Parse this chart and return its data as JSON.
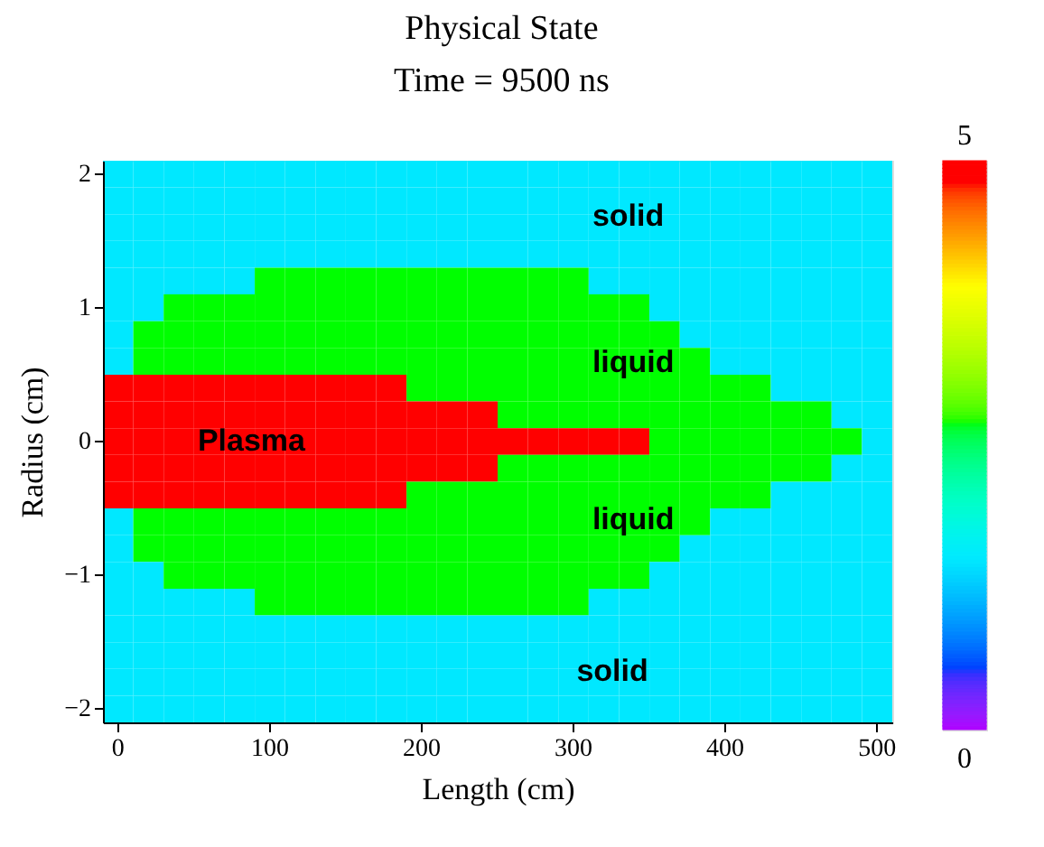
{
  "chart_data": {
    "type": "heatmap",
    "title": "Physical State",
    "subtitle": "Time = 9500 ns",
    "xlabel": "Length (cm)",
    "ylabel": "Radius (cm)",
    "categories": [
      "0",
      null,
      null,
      null,
      null,
      "100",
      null,
      null,
      null,
      null,
      "200",
      null,
      null,
      null,
      null,
      "300",
      null,
      null,
      null,
      null,
      "400",
      null,
      null,
      null,
      null,
      "500"
    ],
    "y_categories": [
      "2",
      null,
      null,
      null,
      null,
      "1",
      null,
      null,
      null,
      null,
      "0",
      null,
      null,
      null,
      null,
      "−1",
      null,
      null,
      null,
      null,
      "−2"
    ],
    "clim": [
      0,
      5.0
    ],
    "cticks": [
      0,
      5
    ],
    "grid": false,
    "cells": [
      [
        1.5,
        1.5,
        1.5,
        1.5,
        1.5,
        1.5,
        1.5,
        1.5,
        1.5,
        1.5,
        1.5,
        1.5,
        1.5,
        1.5,
        1.5,
        1.5,
        1.5,
        1.5,
        1.5,
        1.5,
        1.5,
        1.5,
        1.5,
        1.5,
        1.5,
        1.5
      ],
      [
        1.5,
        1.5,
        1.5,
        1.5,
        1.5,
        1.5,
        1.5,
        1.5,
        1.5,
        1.5,
        1.5,
        1.5,
        1.5,
        1.5,
        1.5,
        1.5,
        1.5,
        1.5,
        1.5,
        1.5,
        1.5,
        1.5,
        1.5,
        1.5,
        1.5,
        1.5
      ],
      [
        1.5,
        1.5,
        1.5,
        1.5,
        1.5,
        1.5,
        1.5,
        1.5,
        1.5,
        1.5,
        1.5,
        1.5,
        1.5,
        1.5,
        1.5,
        1.5,
        1.5,
        1.5,
        1.5,
        1.5,
        1.5,
        1.5,
        1.5,
        1.5,
        1.5,
        1.5
      ],
      [
        1.5,
        1.5,
        1.5,
        1.5,
        1.5,
        1.5,
        1.5,
        1.5,
        1.5,
        1.5,
        1.5,
        1.5,
        1.5,
        1.5,
        1.5,
        1.5,
        1.5,
        1.5,
        1.5,
        1.5,
        1.5,
        1.5,
        1.5,
        1.5,
        1.5,
        1.5
      ],
      [
        1.5,
        1.5,
        1.5,
        1.5,
        1.5,
        2.7,
        2.7,
        2.7,
        2.7,
        2.7,
        2.7,
        2.7,
        2.7,
        2.7,
        2.7,
        2.7,
        1.5,
        1.5,
        1.5,
        1.5,
        1.5,
        1.5,
        1.5,
        1.5,
        1.5,
        1.5
      ],
      [
        1.5,
        1.5,
        2.7,
        2.7,
        2.7,
        2.7,
        2.7,
        2.7,
        2.7,
        2.7,
        2.7,
        2.7,
        2.7,
        2.7,
        2.7,
        2.7,
        2.7,
        2.7,
        1.5,
        1.5,
        1.5,
        1.5,
        1.5,
        1.5,
        1.5,
        1.5
      ],
      [
        1.5,
        2.7,
        2.7,
        2.7,
        2.7,
        2.7,
        2.7,
        2.7,
        2.7,
        2.7,
        2.7,
        2.7,
        2.7,
        2.7,
        2.7,
        2.7,
        2.7,
        2.7,
        2.7,
        1.5,
        1.5,
        1.5,
        1.5,
        1.5,
        1.5,
        1.5
      ],
      [
        1.5,
        2.7,
        2.7,
        2.7,
        2.7,
        2.7,
        2.7,
        2.7,
        2.7,
        2.7,
        2.7,
        2.7,
        2.7,
        2.7,
        2.7,
        2.7,
        2.7,
        2.7,
        2.7,
        2.7,
        1.5,
        1.5,
        1.5,
        1.5,
        1.5,
        1.5
      ],
      [
        4.8,
        4.8,
        4.8,
        4.8,
        4.8,
        4.8,
        4.8,
        4.8,
        4.8,
        4.8,
        2.7,
        2.7,
        2.7,
        2.7,
        2.7,
        2.7,
        2.7,
        2.7,
        2.7,
        2.7,
        2.7,
        2.7,
        1.5,
        1.5,
        1.5,
        1.5
      ],
      [
        4.8,
        4.8,
        4.8,
        4.8,
        4.8,
        4.8,
        4.8,
        4.8,
        4.8,
        4.8,
        4.8,
        4.8,
        4.8,
        2.7,
        2.7,
        2.7,
        2.7,
        2.7,
        2.7,
        2.7,
        2.7,
        2.7,
        2.7,
        2.7,
        1.5,
        1.5
      ],
      [
        4.8,
        4.8,
        4.8,
        4.8,
        4.8,
        4.8,
        4.8,
        4.8,
        4.8,
        4.8,
        4.8,
        4.8,
        4.8,
        4.8,
        4.8,
        4.8,
        4.8,
        4.8,
        2.7,
        2.7,
        2.7,
        2.7,
        2.7,
        2.7,
        2.7,
        1.5
      ],
      [
        4.8,
        4.8,
        4.8,
        4.8,
        4.8,
        4.8,
        4.8,
        4.8,
        4.8,
        4.8,
        4.8,
        4.8,
        4.8,
        2.7,
        2.7,
        2.7,
        2.7,
        2.7,
        2.7,
        2.7,
        2.7,
        2.7,
        2.7,
        2.7,
        1.5,
        1.5
      ],
      [
        4.8,
        4.8,
        4.8,
        4.8,
        4.8,
        4.8,
        4.8,
        4.8,
        4.8,
        4.8,
        2.7,
        2.7,
        2.7,
        2.7,
        2.7,
        2.7,
        2.7,
        2.7,
        2.7,
        2.7,
        2.7,
        2.7,
        1.5,
        1.5,
        1.5,
        1.5
      ],
      [
        1.5,
        2.7,
        2.7,
        2.7,
        2.7,
        2.7,
        2.7,
        2.7,
        2.7,
        2.7,
        2.7,
        2.7,
        2.7,
        2.7,
        2.7,
        2.7,
        2.7,
        2.7,
        2.7,
        2.7,
        1.5,
        1.5,
        1.5,
        1.5,
        1.5,
        1.5
      ],
      [
        1.5,
        2.7,
        2.7,
        2.7,
        2.7,
        2.7,
        2.7,
        2.7,
        2.7,
        2.7,
        2.7,
        2.7,
        2.7,
        2.7,
        2.7,
        2.7,
        2.7,
        2.7,
        2.7,
        1.5,
        1.5,
        1.5,
        1.5,
        1.5,
        1.5,
        1.5
      ],
      [
        1.5,
        1.5,
        2.7,
        2.7,
        2.7,
        2.7,
        2.7,
        2.7,
        2.7,
        2.7,
        2.7,
        2.7,
        2.7,
        2.7,
        2.7,
        2.7,
        2.7,
        2.7,
        1.5,
        1.5,
        1.5,
        1.5,
        1.5,
        1.5,
        1.5,
        1.5
      ],
      [
        1.5,
        1.5,
        1.5,
        1.5,
        1.5,
        2.7,
        2.7,
        2.7,
        2.7,
        2.7,
        2.7,
        2.7,
        2.7,
        2.7,
        2.7,
        2.7,
        1.5,
        1.5,
        1.5,
        1.5,
        1.5,
        1.5,
        1.5,
        1.5,
        1.5,
        1.5
      ],
      [
        1.5,
        1.5,
        1.5,
        1.5,
        1.5,
        1.5,
        1.5,
        1.5,
        1.5,
        1.5,
        1.5,
        1.5,
        1.5,
        1.5,
        1.5,
        1.5,
        1.5,
        1.5,
        1.5,
        1.5,
        1.5,
        1.5,
        1.5,
        1.5,
        1.5,
        1.5
      ],
      [
        1.5,
        1.5,
        1.5,
        1.5,
        1.5,
        1.5,
        1.5,
        1.5,
        1.5,
        1.5,
        1.5,
        1.5,
        1.5,
        1.5,
        1.5,
        1.5,
        1.5,
        1.5,
        1.5,
        1.5,
        1.5,
        1.5,
        1.5,
        1.5,
        1.5,
        1.5
      ],
      [
        1.5,
        1.5,
        1.5,
        1.5,
        1.5,
        1.5,
        1.5,
        1.5,
        1.5,
        1.5,
        1.5,
        1.5,
        1.5,
        1.5,
        1.5,
        1.5,
        1.5,
        1.5,
        1.5,
        1.5,
        1.5,
        1.5,
        1.5,
        1.5,
        1.5,
        1.5
      ],
      [
        1.5,
        1.5,
        1.5,
        1.5,
        1.5,
        1.5,
        1.5,
        1.5,
        1.5,
        1.5,
        1.5,
        1.5,
        1.5,
        1.5,
        1.5,
        1.5,
        1.5,
        1.5,
        1.5,
        1.5,
        1.5,
        1.5,
        1.5,
        1.5,
        1.5,
        1.5
      ]
    ],
    "annotations": [
      "solid",
      "liquid",
      "Plasma",
      "liquid",
      "solid"
    ]
  }
}
